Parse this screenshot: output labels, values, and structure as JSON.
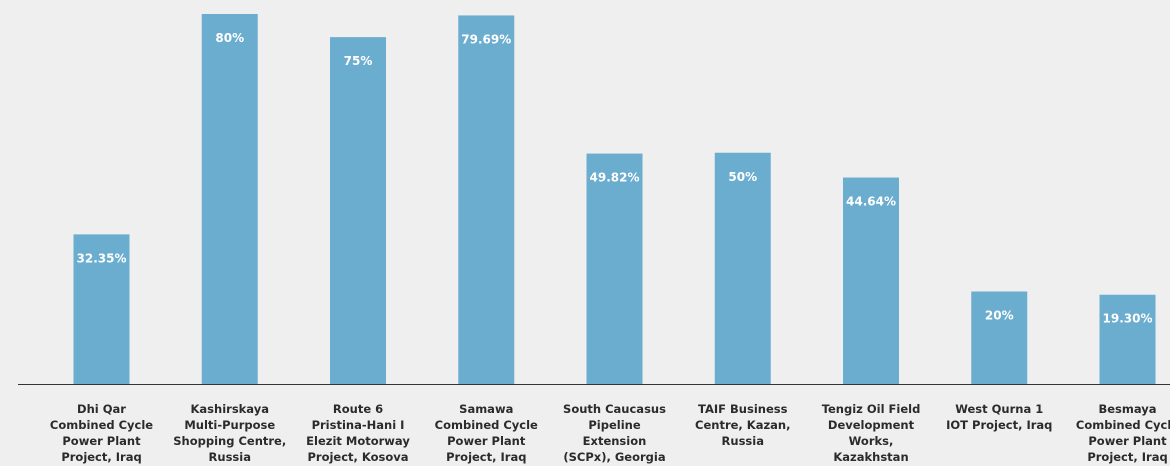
{
  "chart_data": {
    "type": "bar",
    "title": "",
    "xlabel": "",
    "ylabel": "",
    "ylim": [
      0,
      80
    ],
    "grid": false,
    "categories": [
      [
        "Dhi Qar",
        "Combined Cycle",
        "Power Plant",
        "Project, Iraq"
      ],
      [
        "Kashirskaya",
        "Multi-Purpose",
        "Shopping Centre,",
        "Russia"
      ],
      [
        "Route 6",
        "Pristina-Hani I",
        "Elezit Motorway",
        "Project, Kosova"
      ],
      [
        "Samawa",
        "Combined Cycle",
        "Power Plant",
        "Project, Iraq"
      ],
      [
        "South Caucasus",
        "Pipeline",
        "Extension",
        "(SCPx), Georgia"
      ],
      [
        "TAIF Business",
        "Centre, Kazan,",
        "Russia"
      ],
      [
        "Tengiz Oil Field",
        "Development",
        "Works,",
        "Kazakhstan"
      ],
      [
        "West Qurna 1",
        "IOT Project, Iraq"
      ],
      [
        "Besmaya",
        "Combined Cycle",
        "Power Plant",
        "Project, Iraq"
      ]
    ],
    "values": [
      32.35,
      80,
      75,
      79.69,
      49.82,
      50,
      44.64,
      20,
      19.3
    ],
    "value_labels": [
      "32.35%",
      "80%",
      "75%",
      "79.69%",
      "49.82%",
      "50%",
      "44.64%",
      "20%",
      "19.30%"
    ],
    "colors": {
      "bar": "#6aadcf",
      "background": "#f0efef",
      "axis": "#333333"
    }
  }
}
